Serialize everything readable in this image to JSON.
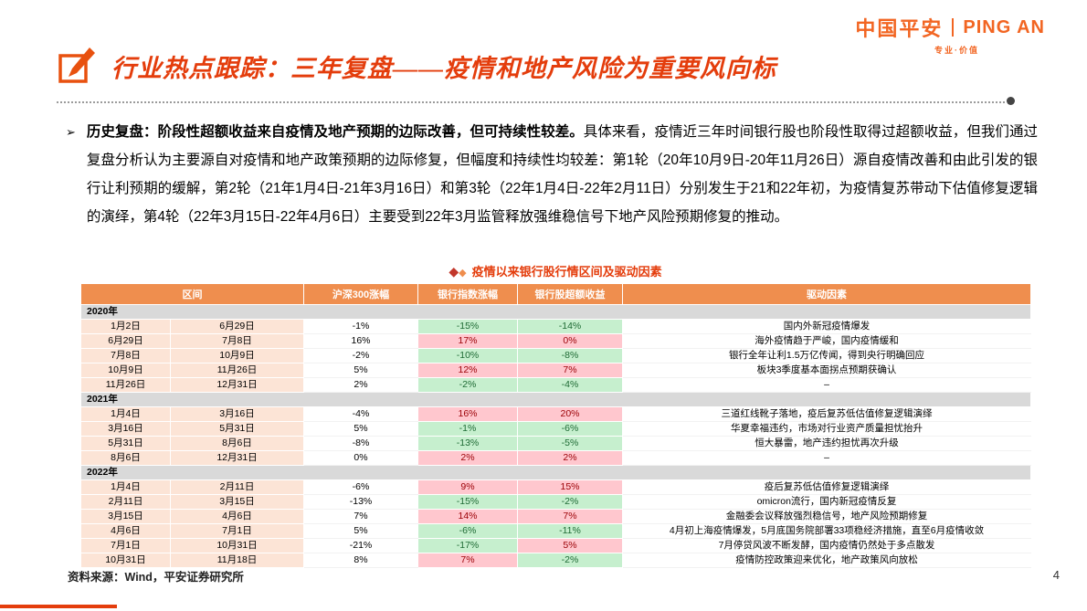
{
  "logo": {
    "cn": "中国平安",
    "en": "PING AN",
    "tagline": "专业·价值"
  },
  "header": {
    "title": "行业热点跟踪：三年复盘——疫情和地产风险为重要风向标"
  },
  "summary": {
    "marker": "➢",
    "lead": "历史复盘：阶段性超额收益来自疫情及地产预期的边际改善，但可持续性较差。",
    "body": "具体来看，疫情近三年时间银行股也阶段性取得过超额收益，但我们通过复盘分析认为主要源自对疫情和地产政策预期的边际修复，但幅度和持续性均较差：第1轮（20年10月9日-20年11月26日）源自疫情改善和由此引发的银行让利预期的缓解，第2轮（21年1月4日-21年3月16日）和第3轮（22年1月4日-22年2月11日）分别发生于21和22年初，为疫情复苏带动下估值修复逻辑的演绎，第4轮（22年3月15日-22年4月6日）主要受到22年3月监管释放强维稳信号下地产风险预期修复的推动。"
  },
  "table": {
    "caption": "疫情以来银行股行情区间及驱动因素",
    "headers": [
      "区间",
      "沪深300涨幅",
      "银行指数涨幅",
      "银行股超额收益",
      "驱动因素"
    ],
    "sections": [
      {
        "year": "2020年",
        "rows": [
          {
            "start": "1月2日",
            "end": "6月29日",
            "hs300": "-1%",
            "bank": "-15%",
            "excess": "-14%",
            "driver": "国内外新冠疫情爆发"
          },
          {
            "start": "6月29日",
            "end": "7月8日",
            "hs300": "16%",
            "bank": "17%",
            "excess": "0%",
            "driver": "海外疫情趋于严峻，国内疫情缓和"
          },
          {
            "start": "7月8日",
            "end": "10月9日",
            "hs300": "-2%",
            "bank": "-10%",
            "excess": "-8%",
            "driver": "银行全年让利1.5万亿传闻，得到央行明确回应"
          },
          {
            "start": "10月9日",
            "end": "11月26日",
            "hs300": "5%",
            "bank": "12%",
            "excess": "7%",
            "driver": "板块3季度基本面拐点预期获确认"
          },
          {
            "start": "11月26日",
            "end": "12月31日",
            "hs300": "2%",
            "bank": "-2%",
            "excess": "-4%",
            "driver": "–"
          }
        ]
      },
      {
        "year": "2021年",
        "rows": [
          {
            "start": "1月4日",
            "end": "3月16日",
            "hs300": "-4%",
            "bank": "16%",
            "excess": "20%",
            "driver": "三道红线靴子落地，疫后复苏低估值修复逻辑演绎"
          },
          {
            "start": "3月16日",
            "end": "5月31日",
            "hs300": "5%",
            "bank": "-1%",
            "excess": "-6%",
            "driver": "华夏幸福违约，市场对行业资产质量担忧抬升"
          },
          {
            "start": "5月31日",
            "end": "8月6日",
            "hs300": "-8%",
            "bank": "-13%",
            "excess": "-5%",
            "driver": "恒大暴雷，地产违约担忧再次升级"
          },
          {
            "start": "8月6日",
            "end": "12月31日",
            "hs300": "0%",
            "bank": "2%",
            "excess": "2%",
            "driver": "–"
          }
        ]
      },
      {
        "year": "2022年",
        "rows": [
          {
            "start": "1月4日",
            "end": "2月11日",
            "hs300": "-6%",
            "bank": "9%",
            "excess": "15%",
            "driver": "疫后复苏低估值修复逻辑演绎"
          },
          {
            "start": "2月11日",
            "end": "3月15日",
            "hs300": "-13%",
            "bank": "-15%",
            "excess": "-2%",
            "driver": "omicron流行，国内新冠疫情反复"
          },
          {
            "start": "3月15日",
            "end": "4月6日",
            "hs300": "7%",
            "bank": "14%",
            "excess": "7%",
            "driver": "金融委会议释放强烈稳信号，地产风险预期修复"
          },
          {
            "start": "4月6日",
            "end": "7月1日",
            "hs300": "5%",
            "bank": "-6%",
            "excess": "-11%",
            "driver": "4月初上海疫情爆发，5月底国务院部署33项稳经济措施，直至6月疫情收敛"
          },
          {
            "start": "7月1日",
            "end": "10月31日",
            "hs300": "-21%",
            "bank": "-17%",
            "excess": "5%",
            "driver": "7月停贷风波不断发酵，国内疫情仍然处于多点散发"
          },
          {
            "start": "10月31日",
            "end": "11月18日",
            "hs300": "8%",
            "bank": "7%",
            "excess": "-2%",
            "driver": "疫情防控政策迎来优化，地产政策风向放松"
          }
        ]
      }
    ]
  },
  "footer": {
    "source": "资料来源：Wind，平安证券研究所",
    "page": "4"
  },
  "colors": {
    "brand_orange": "#F26522",
    "title_red": "#E43D0C",
    "table_header_bg": "#EF8E4E",
    "date_cell_bg": "#FCE4D6",
    "section_row_bg": "#D9D9D9",
    "positive_cell_bg": "#FFC7CE",
    "positive_cell_text": "#9C0006",
    "negative_cell_bg": "#C6EFCE",
    "negative_cell_text": "#1F6B35"
  }
}
